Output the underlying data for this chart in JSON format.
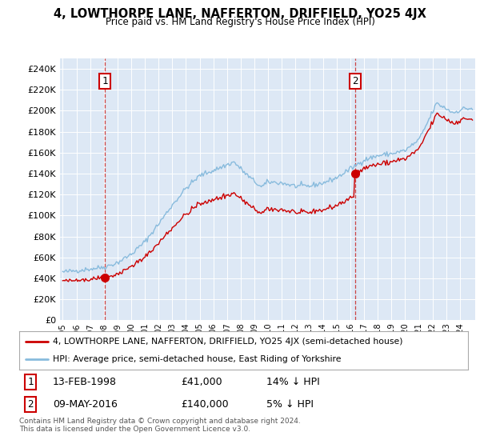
{
  "title": "4, LOWTHORPE LANE, NAFFERTON, DRIFFIELD, YO25 4JX",
  "subtitle": "Price paid vs. HM Land Registry's House Price Index (HPI)",
  "sale1_label": "13-FEB-1998",
  "sale1_price": 41000,
  "sale1_hpi_pct": "14% ↓ HPI",
  "sale2_label": "09-MAY-2016",
  "sale2_price": 140000,
  "sale2_hpi_pct": "5% ↓ HPI",
  "hpi_line_color": "#88bbdd",
  "sale_line_color": "#cc0000",
  "dashed_line_color": "#cc4444",
  "background_color": "#dde8f5",
  "legend_line1": "4, LOWTHORPE LANE, NAFFERTON, DRIFFIELD, YO25 4JX (semi-detached house)",
  "legend_line2": "HPI: Average price, semi-detached house, East Riding of Yorkshire",
  "footer": "Contains HM Land Registry data © Crown copyright and database right 2024.\nThis data is licensed under the Open Government Licence v3.0.",
  "ylim": [
    0,
    250000
  ],
  "yticks": [
    0,
    20000,
    40000,
    60000,
    80000,
    100000,
    120000,
    140000,
    160000,
    180000,
    200000,
    220000,
    240000
  ],
  "start_year": 1995,
  "end_year": 2024
}
